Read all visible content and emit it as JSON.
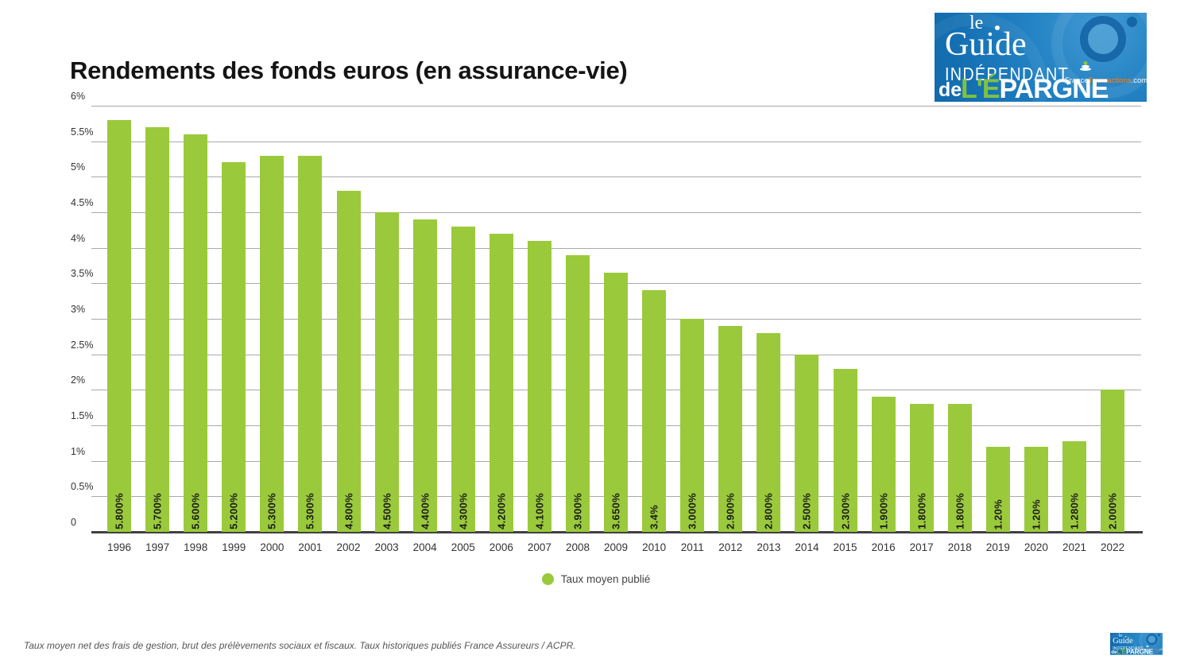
{
  "title": "Rendements des fonds euros (en assurance-vie)",
  "logo": {
    "le": "le",
    "guide": "Guide",
    "independant": "INDÉPENDANT",
    "ft_france": "France",
    "ft_transactions": "Transactions",
    "ft_com": ".com",
    "de": "de",
    "epargne_green": "L'É",
    "epargne_rest": "PARGNE"
  },
  "legend": {
    "label": "Taux moyen publié"
  },
  "footer": "Taux moyen net des frais de gestion, brut des prélèvements sociaux et fiscaux. Taux historiques publiés France Assureurs / ACPR.",
  "chart_data": {
    "type": "bar",
    "title": "Rendements des fonds euros (en assurance-vie)",
    "xlabel": "",
    "ylabel": "",
    "categories": [
      "1996",
      "1997",
      "1998",
      "1999",
      "2000",
      "2001",
      "2002",
      "2003",
      "2004",
      "2005",
      "2006",
      "2007",
      "2008",
      "2009",
      "2010",
      "2011",
      "2012",
      "2013",
      "2014",
      "2015",
      "2016",
      "2017",
      "2018",
      "2019",
      "2020",
      "2021",
      "2022"
    ],
    "values": [
      5.8,
      5.7,
      5.6,
      5.2,
      5.3,
      5.3,
      4.8,
      4.5,
      4.4,
      4.3,
      4.2,
      4.1,
      3.9,
      3.65,
      3.4,
      3.0,
      2.9,
      2.8,
      2.5,
      2.3,
      1.9,
      1.8,
      1.8,
      1.2,
      1.2,
      1.28,
      2.0
    ],
    "bar_labels": [
      "5.800%",
      "5.700%",
      "5.600%",
      "5.200%",
      "5.300%",
      "5.300%",
      "4.800%",
      "4.500%",
      "4.400%",
      "4.300%",
      "4.200%",
      "4.100%",
      "3.900%",
      "3.650%",
      "3.4%",
      "3.000%",
      "2.900%",
      "2.800%",
      "2.500%",
      "2.300%",
      "1.900%",
      "1.800%",
      "1.800%",
      "1.20%",
      "1.20%",
      "1.280%",
      "2.000%"
    ],
    "series_name": "Taux moyen publié",
    "y_ticks": [
      0,
      0.5,
      1,
      1.5,
      2,
      2.5,
      3,
      3.5,
      4,
      4.5,
      5,
      5.5,
      6
    ],
    "y_tick_labels": [
      "0",
      "0.5%",
      "1%",
      "1.5%",
      "2%",
      "2.5%",
      "3%",
      "3.5%",
      "4%",
      "4.5%",
      "5%",
      "5.5%",
      "6%"
    ],
    "ylim": [
      0,
      6
    ],
    "grid": true,
    "legend_position": "bottom",
    "bar_color": "#9aca3b",
    "grid_color": "#a9a9a9",
    "axis_color": "#404040"
  }
}
